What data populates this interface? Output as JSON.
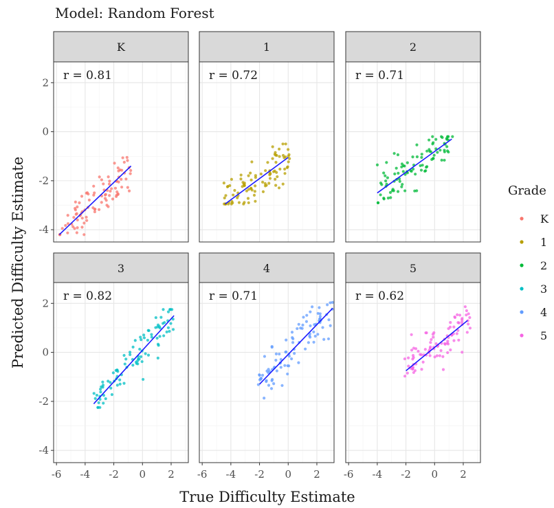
{
  "chart_data": {
    "type": "scatter",
    "title": "Model: Random Forest",
    "xlabel": "True Difficulty Estimate",
    "ylabel": "Predicted Difficulty Estimate",
    "xlim": [
      -6.2,
      3.2
    ],
    "ylim": [
      -4.5,
      2.85
    ],
    "x_ticks": [
      "-6",
      "-4",
      "-2",
      "0",
      "2"
    ],
    "y_ticks": [
      "-4",
      "-2",
      "0",
      "2"
    ],
    "legend": {
      "title": "Grade",
      "position": "right"
    },
    "colors": {
      "K": "#F8766D",
      "1": "#B79F00",
      "2": "#00BA38",
      "3": "#00BFC4",
      "4": "#619CFF",
      "5": "#F564E3",
      "fit": "#1a1aff"
    },
    "panels": [
      {
        "label": "K",
        "r_label": "r = 0.81",
        "x_range": [
          -5.8,
          -0.8
        ],
        "y_range": [
          -4.2,
          -1.05
        ],
        "fit": [
          [
            -5.8,
            -4.2
          ],
          [
            -0.8,
            -1.4
          ]
        ]
      },
      {
        "label": "1",
        "r_label": "r = 0.72",
        "x_range": [
          -4.5,
          0.1
        ],
        "y_range": [
          -2.95,
          -0.5
        ],
        "fit": [
          [
            -4.4,
            -2.95
          ],
          [
            0.0,
            -1.05
          ]
        ]
      },
      {
        "label": "2",
        "r_label": "r = 0.71",
        "x_range": [
          -4.0,
          1.3
        ],
        "y_range": [
          -2.9,
          -0.2
        ],
        "fit": [
          [
            -4.0,
            -2.5
          ],
          [
            1.2,
            -0.3
          ]
        ]
      },
      {
        "label": "3",
        "r_label": "r = 0.82",
        "x_range": [
          -3.4,
          2.3
        ],
        "y_range": [
          -2.25,
          1.75
        ],
        "fit": [
          [
            -3.4,
            -2.1
          ],
          [
            2.2,
            1.5
          ]
        ]
      },
      {
        "label": "4",
        "r_label": "r = 0.71",
        "x_range": [
          -2.1,
          3.1
        ],
        "y_range": [
          -1.95,
          2.45
        ],
        "fit": [
          [
            -2.0,
            -1.3
          ],
          [
            3.1,
            1.8
          ]
        ]
      },
      {
        "label": "5",
        "r_label": "r = 0.62",
        "x_range": [
          -2.1,
          2.5
        ],
        "y_range": [
          -1.45,
          1.9
        ],
        "fit": [
          [
            -2.0,
            -0.75
          ],
          [
            2.3,
            1.3
          ]
        ]
      }
    ]
  }
}
